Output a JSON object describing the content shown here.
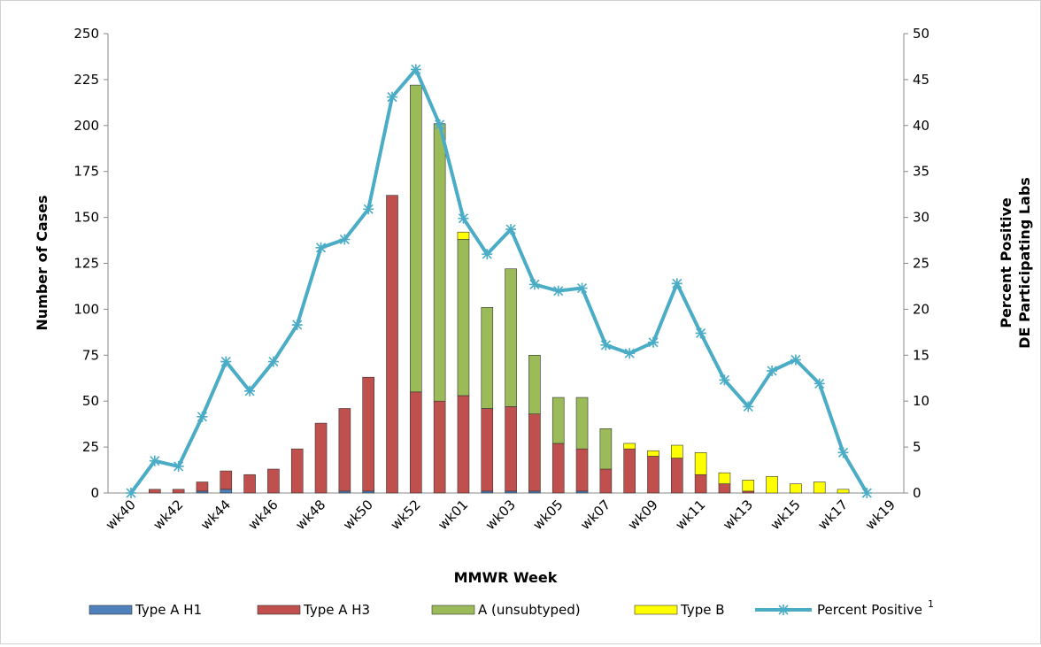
{
  "chart_data": {
    "type": "bar",
    "xlabel": "MMWR Week",
    "ylabel": "Number of Cases",
    "y2label": [
      "Percent Positive",
      "DE Participating Labs"
    ],
    "legend_superscript": "1",
    "categories": [
      "wk40",
      null,
      "wk42",
      null,
      "wk44",
      null,
      "wk46",
      null,
      "wk48",
      null,
      "wk50",
      null,
      "wk52",
      null,
      "wk01",
      null,
      "wk03",
      null,
      "wk05",
      null,
      "wk07",
      null,
      "wk09",
      null,
      "wk11",
      null,
      "wk13",
      null,
      "wk15",
      null,
      "wk17",
      null,
      "wk19"
    ],
    "ylim": [
      0,
      250
    ],
    "yticks": [
      0,
      25,
      50,
      75,
      100,
      125,
      150,
      175,
      200,
      225,
      250
    ],
    "y2lim": [
      0,
      50
    ],
    "y2ticks": [
      0,
      5,
      10,
      15,
      20,
      25,
      30,
      35,
      40,
      45,
      50
    ],
    "stacked": true,
    "series": [
      {
        "name": "Type A H1",
        "type": "bar",
        "color": "#4f81bd",
        "values": [
          0,
          0,
          0,
          1,
          2,
          0,
          0,
          0,
          0,
          1,
          1,
          0,
          0,
          0,
          0,
          1,
          1,
          1,
          0,
          1,
          0,
          0,
          0,
          0,
          0,
          0,
          0,
          0,
          0,
          0,
          0,
          0,
          0
        ]
      },
      {
        "name": "Type A H3",
        "type": "bar",
        "color": "#c0504d",
        "values": [
          0,
          2,
          2,
          5,
          10,
          10,
          13,
          24,
          38,
          45,
          62,
          162,
          55,
          50,
          53,
          45,
          46,
          42,
          27,
          23,
          13,
          24,
          20,
          19,
          10,
          5,
          1,
          0,
          0,
          0,
          0,
          0,
          0
        ]
      },
      {
        "name": "A (unsubtyped)",
        "type": "bar",
        "color": "#9bbb59",
        "values": [
          0,
          0,
          0,
          0,
          0,
          0,
          0,
          0,
          0,
          0,
          0,
          0,
          167,
          151,
          85,
          55,
          75,
          32,
          25,
          28,
          22,
          0,
          0,
          0,
          0,
          0,
          0,
          0,
          0,
          0,
          0,
          0,
          0
        ]
      },
      {
        "name": "Type B",
        "type": "bar",
        "color": "#ffff00",
        "values": [
          0,
          0,
          0,
          0,
          0,
          0,
          0,
          0,
          0,
          0,
          0,
          0,
          0,
          0,
          4,
          0,
          0,
          0,
          0,
          0,
          0,
          3,
          3,
          7,
          12,
          6,
          6,
          9,
          5,
          6,
          2,
          0,
          0
        ]
      },
      {
        "name": "Percent Positive",
        "type": "line",
        "axis": "y2",
        "color": "#4bacc6",
        "values": [
          0,
          3.5,
          2.9,
          8.3,
          14.3,
          11.1,
          14.3,
          18.3,
          26.7,
          27.6,
          30.9,
          43.1,
          46.1,
          40.1,
          29.9,
          26,
          28.7,
          22.7,
          22,
          22.3,
          16.1,
          15.2,
          16.4,
          22.8,
          17.4,
          12.3,
          9.4,
          13.3,
          14.5,
          11.9,
          4.4,
          0,
          null
        ]
      }
    ]
  }
}
